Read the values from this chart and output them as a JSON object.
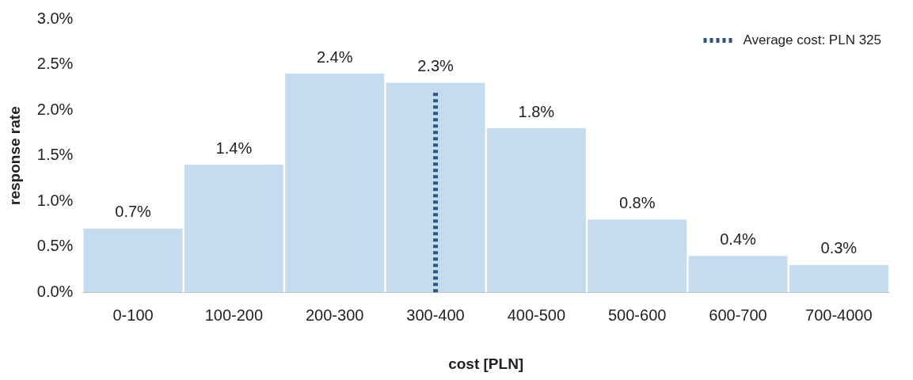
{
  "chart_data": {
    "type": "bar",
    "xlabel": "cost [PLN]",
    "ylabel": "response rate",
    "categories": [
      "0-100",
      "100-200",
      "200-300",
      "300-400",
      "400-500",
      "500-600",
      "600-700",
      "700-4000"
    ],
    "values": [
      0.7,
      1.4,
      2.4,
      2.3,
      1.8,
      0.8,
      0.4,
      0.3
    ],
    "value_labels": [
      "0.7%",
      "1.4%",
      "2.4%",
      "2.3%",
      "1.8%",
      "0.8%",
      "0.4%",
      "0.3%"
    ],
    "color": "#c5dcef",
    "ylim": [
      0,
      3
    ],
    "yticks": [
      {
        "value": 0,
        "label": "0.0%"
      },
      {
        "value": 0.5,
        "label": "0.5%"
      },
      {
        "value": 1,
        "label": "1.0%"
      },
      {
        "value": 1.5,
        "label": "1.5%"
      },
      {
        "value": 2,
        "label": "2.0%"
      },
      {
        "value": 2.5,
        "label": "2.5%"
      },
      {
        "value": 3,
        "label": "3.0%"
      }
    ],
    "ref_lines": [
      {
        "axis": "x",
        "value": "300-400",
        "label": "Average cost: PLN 325",
        "color": "#2f5583",
        "line_style": "dotted"
      }
    ],
    "legend": "top right",
    "grid": false
  }
}
